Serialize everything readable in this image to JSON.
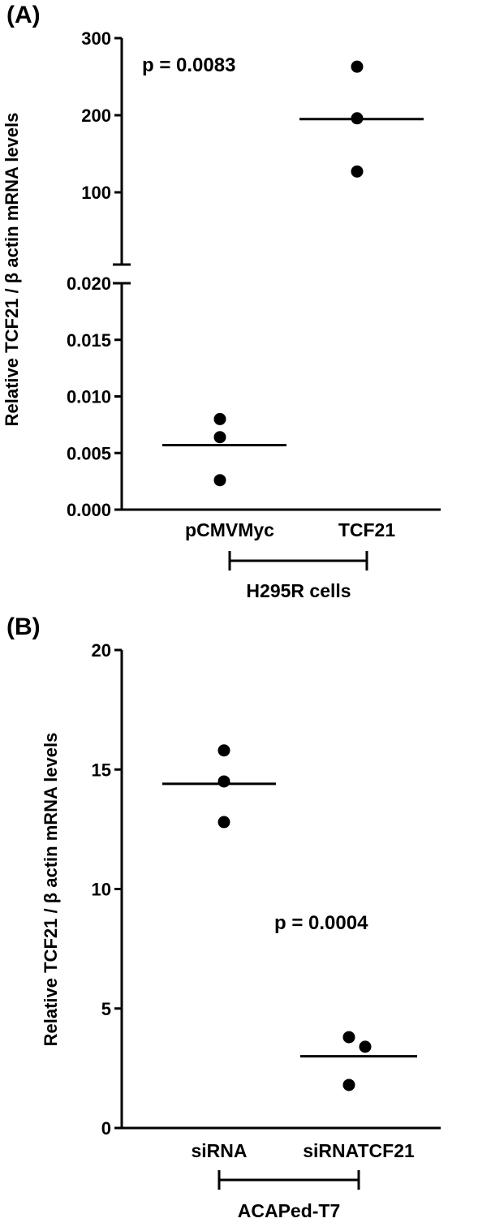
{
  "figure": {
    "background": "#ffffff",
    "ink": "#000000"
  },
  "chart_data": [
    {
      "type": "scatter",
      "panel_label": "(A)",
      "ylabel": "Relative TCF21 / β actin mRNA levels",
      "annotation": "p = 0.0083",
      "categories": [
        "pCMVMyc",
        "TCF21"
      ],
      "group_label": "H295R cells",
      "broken_axis": true,
      "segments": [
        {
          "ylim": [
            0.0,
            0.02
          ],
          "ticks": [
            "0.000",
            "0.005",
            "0.010",
            "0.015",
            "0.020"
          ],
          "tick_values": [
            0,
            0.005,
            0.01,
            0.015,
            0.02
          ]
        },
        {
          "ylim": [
            0,
            300
          ],
          "ticks": [
            "100",
            "200",
            "300"
          ],
          "tick_values": [
            100,
            200,
            300
          ]
        }
      ],
      "series": [
        {
          "category": "pCMVMyc",
          "points": [
            0.008,
            0.0064,
            0.0026
          ],
          "mean": 0.0057
        },
        {
          "category": "TCF21",
          "points": [
            263,
            196,
            127
          ],
          "mean": 195
        }
      ]
    },
    {
      "type": "scatter",
      "panel_label": "(B)",
      "ylabel": "Relative TCF21 / β actin mRNA levels",
      "annotation": "p  = 0.0004",
      "categories": [
        "siRNA",
        "siRNATCF21"
      ],
      "group_label": "ACAPed-T7",
      "ylim": [
        0,
        20
      ],
      "ticks": [
        "0",
        "5",
        "10",
        "15",
        "20"
      ],
      "tick_values": [
        0,
        5,
        10,
        15,
        20
      ],
      "series": [
        {
          "category": "siRNA",
          "points": [
            15.8,
            14.5,
            12.8
          ],
          "mean": 14.4
        },
        {
          "category": "siRNATCF21",
          "points": [
            3.8,
            3.4,
            1.8
          ],
          "mean": 3.0
        }
      ]
    }
  ]
}
